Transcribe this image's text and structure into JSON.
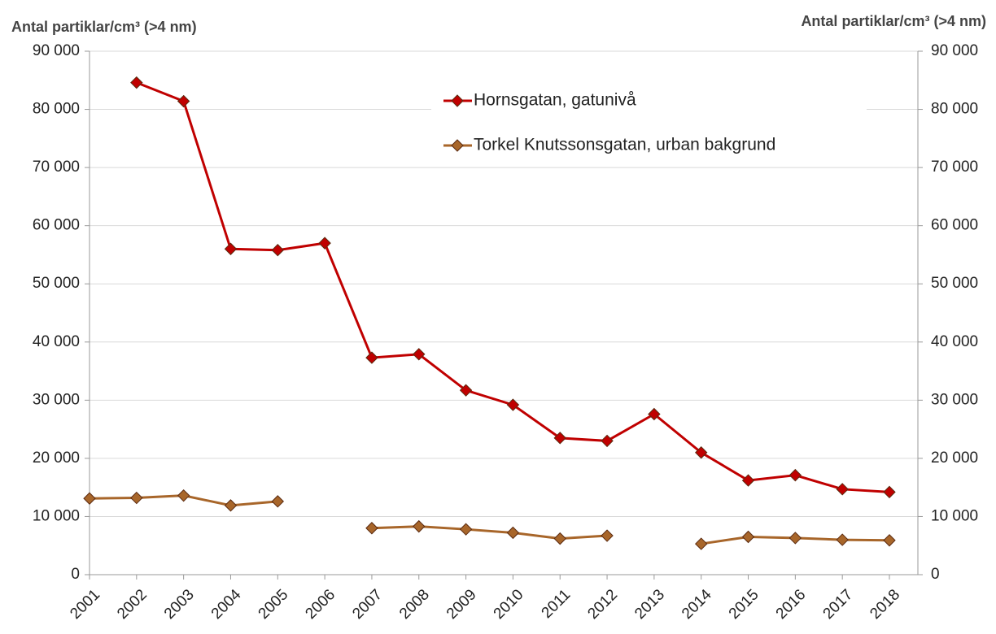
{
  "chart_data": {
    "type": "line",
    "y_label": "Antal partiklar/cm³ (>4 nm)",
    "y2_label": "Antal partiklar/cm³ (>4 nm)",
    "categories": [
      "2001",
      "2002",
      "2003",
      "2004",
      "2005",
      "2006",
      "2007",
      "2008",
      "2009",
      "2010",
      "2011",
      "2012",
      "2013",
      "2014",
      "2015",
      "2016",
      "2017",
      "2018"
    ],
    "series": [
      {
        "name": "Hornsgatan, gatunivå",
        "color": "#c00000",
        "values": [
          null,
          84600,
          81400,
          56000,
          55800,
          57000,
          37300,
          37900,
          31700,
          29200,
          23500,
          23000,
          27600,
          21000,
          16200,
          17100,
          14700,
          14200
        ]
      },
      {
        "name": "Torkel Knutssonsgatan, urban bakgrund",
        "color": "#a8662a",
        "values": [
          13100,
          13200,
          13600,
          11900,
          12600,
          null,
          8000,
          8300,
          7800,
          7200,
          6200,
          6700,
          null,
          5300,
          6500,
          6300,
          6000,
          5900
        ]
      }
    ],
    "ylim": [
      0,
      90000
    ],
    "yticks": [
      0,
      {
        "value": 10000,
        "label": "10 000"
      },
      {
        "value": 20000,
        "label": "20 000"
      },
      {
        "value": 30000,
        "label": "30 000"
      },
      {
        "value": 40000,
        "label": "40 000"
      },
      {
        "value": 50000,
        "label": "50 000"
      },
      {
        "value": 60000,
        "label": "60 000"
      },
      {
        "value": 70000,
        "label": "70 000"
      },
      {
        "value": 80000,
        "label": "80 000"
      },
      {
        "value": 90000,
        "label": "90 000"
      }
    ],
    "y2lim": [
      0,
      90000
    ],
    "y2ticks": [
      0,
      {
        "value": 10000,
        "label": "10 000"
      },
      {
        "value": 20000,
        "label": "20 000"
      },
      {
        "value": 30000,
        "label": "30 000"
      },
      {
        "value": 40000,
        "label": "40 000"
      },
      {
        "value": 50000,
        "label": "50 000"
      },
      {
        "value": 60000,
        "label": "60 000"
      },
      {
        "value": 70000,
        "label": "70 000"
      },
      {
        "value": 80000,
        "label": "80 000"
      },
      {
        "value": 90000,
        "label": "90 000"
      }
    ],
    "grid": true,
    "legend": "top"
  }
}
